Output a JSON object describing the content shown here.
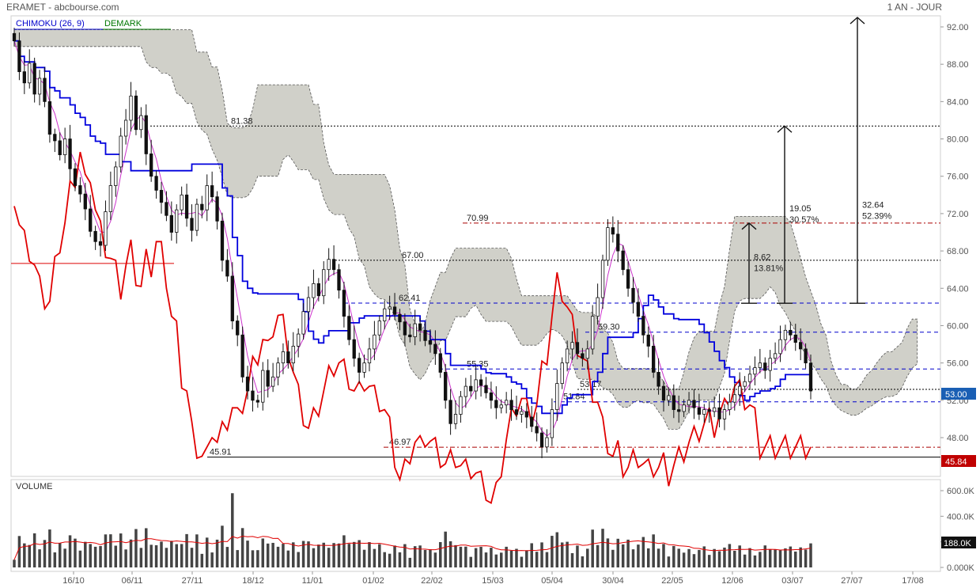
{
  "header": {
    "title": "ERAMET - abcbourse.com",
    "period": "1 AN - JOUR"
  },
  "legend": {
    "ichimoku": "CHIMOKU (26, 9)",
    "demark": "DEMARK"
  },
  "price_panel": {
    "y_ticks": [
      "92.00",
      "88.00",
      "84.00",
      "80.00",
      "76.00",
      "72.00",
      "68.00",
      "64.00",
      "60.00",
      "56.00",
      "52.00",
      "48.00"
    ],
    "last_price_tag": "53.00",
    "low_price_tag": "45.84",
    "levels": [
      {
        "label": "81.38",
        "value": 81.38
      },
      {
        "label": "70.99",
        "value": 70.99
      },
      {
        "label": "67.00",
        "value": 67.0
      },
      {
        "label": "62.41",
        "value": 62.41
      },
      {
        "label": "59.30",
        "value": 59.3
      },
      {
        "label": "55.35",
        "value": 55.35
      },
      {
        "label": "53.17",
        "value": 53.17
      },
      {
        "label": "51.84",
        "value": 51.84
      },
      {
        "label": "46.97",
        "value": 46.97
      },
      {
        "label": "45.91",
        "value": 45.91
      }
    ],
    "measures": [
      {
        "line1": "8.62",
        "line2": "13.81%"
      },
      {
        "line1": "19.05",
        "line2": "30.57%"
      },
      {
        "line1": "32.64",
        "line2": "52.39%"
      }
    ]
  },
  "volume_panel": {
    "title": "VOLUME",
    "y_ticks": [
      "600.0K",
      "400.0K",
      "200.0K",
      "0.000K"
    ],
    "last_volume_tag": "188.0K"
  },
  "x_ticks": [
    "16/10",
    "06/11",
    "27/11",
    "18/12",
    "11/01",
    "01/02",
    "22/02",
    "15/03",
    "05/04",
    "30/04",
    "22/05",
    "12/06",
    "03/07",
    "27/07",
    "17/08"
  ],
  "colors": {
    "cloud": "#c8c8c0",
    "tenkan": "#cc33cc",
    "kijun": "#0000dd",
    "red_line": "#e00000",
    "up": "#ffffff",
    "down": "#111111",
    "price_tag_bg": "#1a5fb4",
    "low_tag_bg": "#c00000"
  },
  "chart_data": {
    "type": "candlestick",
    "title": "ERAMET - abcbourse.com",
    "period": "1 AN - JOUR",
    "ylim": [
      45,
      93
    ],
    "close": [
      90.5,
      87.2,
      86.0,
      88.1,
      84.8,
      86.5,
      84.0,
      80.5,
      79.8,
      78.3,
      80.0,
      76.8,
      75.0,
      74.1,
      72.5,
      70.1,
      69.0,
      68.6,
      72.2,
      75.0,
      77.0,
      80.3,
      82.0,
      84.6,
      81.0,
      82.5,
      78.4,
      76.0,
      74.5,
      73.2,
      71.8,
      70.0,
      72.4,
      74.0,
      71.5,
      70.2,
      73.0,
      72.4,
      75.0,
      73.8,
      71.2,
      67.0,
      65.3,
      60.5,
      59.0,
      54.5,
      53.0,
      52.0,
      51.8,
      55.2,
      53.5,
      54.5,
      56.0,
      57.2,
      56.0,
      57.8,
      59.1,
      61.5,
      63.0,
      64.5,
      63.2,
      66.0,
      67.1,
      66.0,
      63.8,
      61.0,
      58.5,
      56.5,
      55.0,
      56.0,
      57.5,
      59.0,
      60.5,
      61.8,
      62.0,
      61.2,
      60.4,
      59.0,
      58.8,
      60.2,
      59.5,
      58.4,
      58.0,
      57.0,
      55.0,
      52.0,
      49.5,
      50.5,
      52.4,
      53.5,
      53.0,
      54.2,
      53.6,
      52.8,
      52.0,
      51.2,
      51.5,
      52.0,
      51.0,
      50.5,
      50.8,
      50.2,
      49.2,
      48.5,
      47.0,
      48.0,
      51.0,
      53.8,
      56.0,
      57.5,
      58.2,
      57.0,
      56.5,
      57.5,
      61.0,
      63.0,
      67.0,
      70.5,
      69.8,
      68.0,
      66.0,
      64.0,
      62.5,
      61.0,
      59.0,
      57.8,
      55.0,
      53.5,
      52.0,
      52.5,
      51.0,
      50.8,
      51.5,
      52.0,
      51.2,
      50.5,
      51.0,
      50.8,
      51.2,
      50.0,
      51.0,
      51.8,
      52.6,
      53.5,
      54.0,
      54.8,
      55.5,
      56.0,
      55.2,
      56.5,
      57.0,
      58.5,
      59.5,
      59.0,
      58.2,
      57.5,
      56.0,
      53.0
    ]
  }
}
